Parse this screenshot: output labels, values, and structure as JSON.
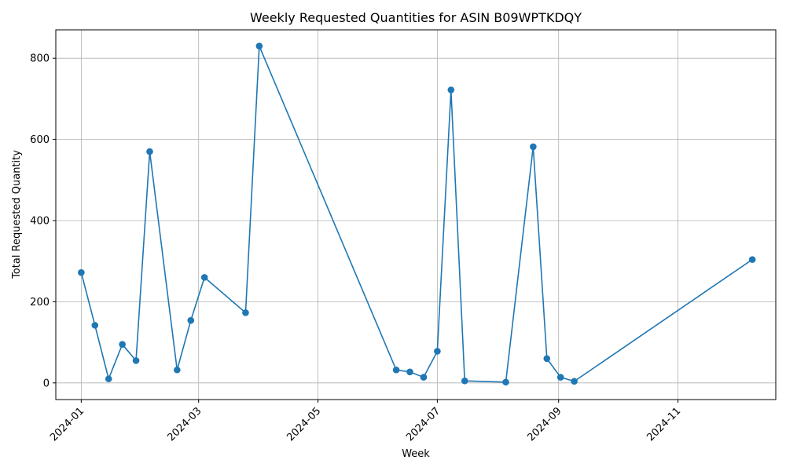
{
  "chart_data": {
    "type": "line",
    "title": "Weekly Requested Quantities for ASIN B09WPTKDQY",
    "xlabel": "Week",
    "ylabel": "Total Requested Quantity",
    "x_ticks": [
      "2024-01",
      "2024-03",
      "2024-05",
      "2024-07",
      "2024-09",
      "2024-11"
    ],
    "y_ticks": [
      0,
      200,
      400,
      600,
      800
    ],
    "xlim": [
      "2023-12-19",
      "2024-12-21"
    ],
    "ylim": [
      -41,
      870
    ],
    "grid": true,
    "marker": "circle",
    "color": "#1f77b4",
    "series": [
      {
        "x": [
          "2024-01-01",
          "2024-01-08",
          "2024-01-15",
          "2024-01-22",
          "2024-01-29",
          "2024-02-05",
          "2024-02-19",
          "2024-02-26",
          "2024-03-04",
          "2024-03-25",
          "2024-04-01",
          "2024-06-10",
          "2024-06-17",
          "2024-06-24",
          "2024-07-01",
          "2024-07-08",
          "2024-07-15",
          "2024-08-05",
          "2024-08-19",
          "2024-08-26",
          "2024-09-02",
          "2024-09-09",
          "2024-12-09"
        ],
        "values": [
          272,
          142,
          10,
          95,
          55,
          570,
          32,
          154,
          260,
          173,
          830,
          32,
          27,
          14,
          78,
          722,
          5,
          2,
          582,
          60,
          14,
          4,
          304
        ]
      }
    ]
  }
}
